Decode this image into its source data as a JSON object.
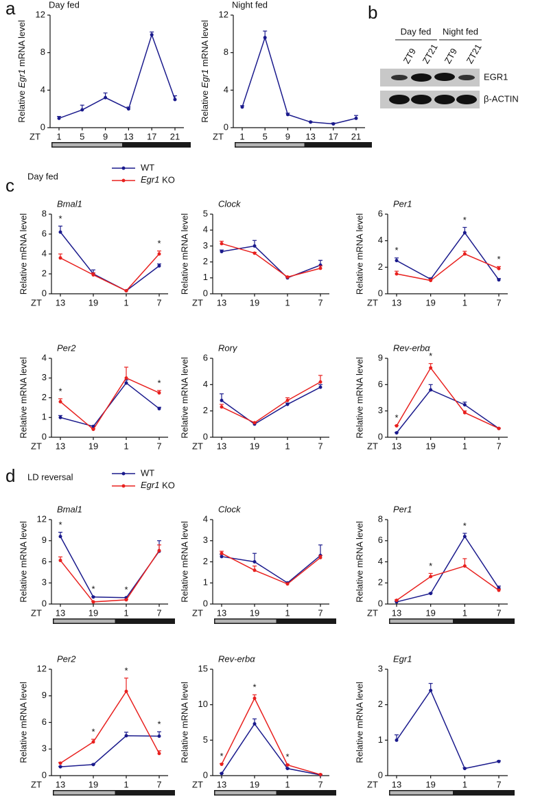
{
  "panels": [
    {
      "label": "a"
    },
    {
      "label": "b"
    },
    {
      "label": "c",
      "subtitle": "Day fed"
    },
    {
      "label": "d",
      "subtitle": "LD reversal"
    }
  ],
  "blot": {
    "groups": [
      "Day fed",
      "Night fed"
    ],
    "lanes": [
      "ZT9",
      "ZT21",
      "ZT9",
      "ZT21"
    ],
    "proteins": [
      "EGR1",
      "β-ACTIN"
    ]
  },
  "chart_data": [
    {
      "type": "line",
      "title": "Day fed",
      "title_italic": false,
      "xlabel": "ZT",
      "ylabel": [
        "Relative ",
        "Egr1",
        " mRNA level"
      ],
      "ylabel_italic": [
        false,
        true,
        false
      ],
      "categories": [
        "1",
        "5",
        "9",
        "13",
        "17",
        "21"
      ],
      "ylim": [
        0,
        12
      ],
      "yticks": [
        0,
        4,
        8,
        12
      ],
      "light_dark_bar": true,
      "series": [
        {
          "name": "WT",
          "color": "#1a1a8c",
          "values": [
            1.0,
            1.9,
            3.2,
            2.0,
            9.9,
            3.0
          ],
          "errors": [
            0.2,
            0.5,
            0.5,
            0.2,
            0.3,
            0.4
          ]
        }
      ]
    },
    {
      "type": "line",
      "title": "Night fed",
      "title_italic": false,
      "xlabel": "ZT",
      "ylabel": [
        "Relative ",
        "Egr1",
        " mRNA level"
      ],
      "ylabel_italic": [
        false,
        true,
        false
      ],
      "categories": [
        "1",
        "5",
        "9",
        "13",
        "17",
        "21"
      ],
      "ylim": [
        0,
        12
      ],
      "yticks": [
        0,
        4,
        8,
        12
      ],
      "light_dark_bar": true,
      "series": [
        {
          "name": "WT",
          "color": "#1a1a8c",
          "values": [
            2.2,
            9.6,
            1.4,
            0.6,
            0.4,
            1.0
          ],
          "errors": [
            0.15,
            0.7,
            0.15,
            0.05,
            0.1,
            0.3
          ]
        }
      ]
    },
    {
      "type": "line",
      "title": "Bmal1",
      "title_italic": true,
      "xlabel": "ZT",
      "ylabel": "Relative mRNA level",
      "categories": [
        "13",
        "19",
        "1",
        "7"
      ],
      "ylim": [
        0,
        8
      ],
      "yticks": [
        0,
        2,
        4,
        6,
        8
      ],
      "legend": true,
      "markers": [
        "*",
        null,
        null,
        "*"
      ],
      "series": [
        {
          "name": "WT",
          "color": "#1a1a8c",
          "values": [
            6.2,
            2.0,
            0.3,
            2.8
          ],
          "errors": [
            0.6,
            0.4,
            0.05,
            0.2
          ]
        },
        {
          "name": "Egr1 KO",
          "italic_first_word": true,
          "color": "#e8201e",
          "values": [
            3.6,
            1.9,
            0.3,
            4.0
          ],
          "errors": [
            0.4,
            0.2,
            0.05,
            0.3
          ]
        }
      ]
    },
    {
      "type": "line",
      "title": "Clock",
      "title_italic": true,
      "xlabel": "ZT",
      "ylabel": "Relative mRNA level",
      "categories": [
        "13",
        "19",
        "1",
        "7"
      ],
      "ylim": [
        0,
        5
      ],
      "yticks": [
        0,
        1,
        2,
        3,
        4,
        5
      ],
      "series": [
        {
          "name": "WT",
          "color": "#1a1a8c",
          "values": [
            2.65,
            3.0,
            1.0,
            1.8
          ],
          "errors": [
            0.1,
            0.35,
            0.05,
            0.3
          ]
        },
        {
          "name": "Egr1 KO",
          "italic_first_word": true,
          "color": "#e8201e",
          "values": [
            3.15,
            2.55,
            1.05,
            1.6
          ],
          "errors": [
            0.15,
            0.05,
            0.05,
            0.15
          ]
        }
      ]
    },
    {
      "type": "line",
      "title": "Per1",
      "title_italic": true,
      "xlabel": "ZT",
      "ylabel": "Relative mRNA level",
      "categories": [
        "13",
        "19",
        "1",
        "7"
      ],
      "ylim": [
        0,
        6
      ],
      "yticks": [
        0,
        2,
        4,
        6
      ],
      "markers": [
        "*",
        null,
        "*",
        "*"
      ],
      "series": [
        {
          "name": "WT",
          "color": "#1a1a8c",
          "values": [
            2.5,
            1.1,
            4.6,
            1.05
          ],
          "errors": [
            0.2,
            0.1,
            0.4,
            0.1
          ]
        },
        {
          "name": "Egr1 KO",
          "italic_first_word": true,
          "color": "#e8201e",
          "values": [
            1.5,
            1.0,
            3.0,
            1.9
          ],
          "errors": [
            0.2,
            0.1,
            0.2,
            0.15
          ]
        }
      ]
    },
    {
      "type": "line",
      "title": "Per2",
      "title_italic": true,
      "xlabel": "ZT",
      "ylabel": "Relative mRNA level",
      "categories": [
        "13",
        "19",
        "1",
        "7"
      ],
      "ylim": [
        0,
        4
      ],
      "yticks": [
        0,
        1,
        2,
        3,
        4
      ],
      "markers": [
        "*",
        null,
        null,
        "*"
      ],
      "series": [
        {
          "name": "WT",
          "color": "#1a1a8c",
          "values": [
            1.0,
            0.55,
            2.75,
            1.45
          ],
          "errors": [
            0.1,
            0.03,
            0.15,
            0.07
          ]
        },
        {
          "name": "Egr1 KO",
          "italic_first_word": true,
          "color": "#e8201e",
          "values": [
            1.8,
            0.4,
            3.0,
            2.25
          ],
          "errors": [
            0.15,
            0.03,
            0.55,
            0.12
          ]
        }
      ]
    },
    {
      "type": "line",
      "title": "Rorγ",
      "title_italic": true,
      "xlabel": "ZT",
      "ylabel": "Relative mRNA level",
      "categories": [
        "13",
        "19",
        "1",
        "7"
      ],
      "ylim": [
        0,
        6
      ],
      "yticks": [
        0,
        2,
        4,
        6
      ],
      "series": [
        {
          "name": "WT",
          "color": "#1a1a8c",
          "values": [
            2.8,
            1.0,
            2.5,
            3.8
          ],
          "errors": [
            0.5,
            0.1,
            0.1,
            0.2
          ]
        },
        {
          "name": "Egr1 KO",
          "italic_first_word": true,
          "color": "#e8201e",
          "values": [
            2.3,
            1.1,
            2.8,
            4.2
          ],
          "errors": [
            0.2,
            0.05,
            0.2,
            0.5
          ]
        }
      ]
    },
    {
      "type": "line",
      "title": "Rev-erbα",
      "title_italic": true,
      "xlabel": "ZT",
      "ylabel": "Relative mRNA level",
      "categories": [
        "13",
        "19",
        "1",
        "7"
      ],
      "ylim": [
        0,
        9
      ],
      "yticks": [
        0,
        3,
        6,
        9
      ],
      "markers": [
        "*",
        "*",
        null,
        null
      ],
      "series": [
        {
          "name": "WT",
          "color": "#1a1a8c",
          "values": [
            0.5,
            5.4,
            3.7,
            1.0
          ],
          "errors": [
            0.05,
            0.6,
            0.3,
            0.05
          ]
        },
        {
          "name": "Egr1 KO",
          "italic_first_word": true,
          "color": "#e8201e",
          "values": [
            1.3,
            7.9,
            2.8,
            1.0
          ],
          "errors": [
            0.05,
            0.5,
            0.2,
            0.05
          ]
        }
      ]
    },
    {
      "type": "line",
      "title": "Bmal1",
      "title_italic": true,
      "xlabel": "ZT",
      "ylabel": "Relative mRNA level",
      "categories": [
        "13",
        "19",
        "1",
        "7"
      ],
      "ylim": [
        0,
        12
      ],
      "yticks": [
        0,
        3,
        6,
        9,
        12
      ],
      "legend": true,
      "light_dark_bar": true,
      "markers": [
        "*",
        "*",
        "*",
        null
      ],
      "series": [
        {
          "name": "WT",
          "color": "#1a1a8c",
          "values": [
            9.6,
            1.0,
            0.9,
            7.5
          ],
          "errors": [
            0.6,
            0.05,
            0.05,
            1.5
          ]
        },
        {
          "name": "Egr1 KO",
          "italic_first_word": true,
          "color": "#e8201e",
          "values": [
            6.2,
            0.3,
            0.6,
            7.6
          ],
          "errors": [
            0.5,
            0.05,
            0.05,
            0.8
          ]
        }
      ]
    },
    {
      "type": "line",
      "title": "Clock",
      "title_italic": true,
      "xlabel": "ZT",
      "ylabel": "Relative mRNA level",
      "categories": [
        "13",
        "19",
        "1",
        "7"
      ],
      "ylim": [
        0,
        4
      ],
      "yticks": [
        0,
        1,
        2,
        3,
        4
      ],
      "light_dark_bar": true,
      "series": [
        {
          "name": "WT",
          "color": "#1a1a8c",
          "values": [
            2.25,
            2.0,
            1.0,
            2.3
          ],
          "errors": [
            0.1,
            0.4,
            0.05,
            0.5
          ]
        },
        {
          "name": "Egr1 KO",
          "italic_first_word": true,
          "color": "#e8201e",
          "values": [
            2.4,
            1.6,
            0.95,
            2.2
          ],
          "errors": [
            0.1,
            0.2,
            0.05,
            0.1
          ]
        }
      ]
    },
    {
      "type": "line",
      "title": "Per1",
      "title_italic": true,
      "xlabel": "ZT",
      "ylabel": "Relative mRNA level",
      "categories": [
        "13",
        "19",
        "1",
        "7"
      ],
      "ylim": [
        0,
        8
      ],
      "yticks": [
        0,
        2,
        4,
        6,
        8
      ],
      "light_dark_bar": true,
      "markers": [
        null,
        "*",
        "*",
        null
      ],
      "series": [
        {
          "name": "WT",
          "color": "#1a1a8c",
          "values": [
            0.2,
            1.0,
            6.4,
            1.5
          ],
          "errors": [
            0.05,
            0.05,
            0.3,
            0.2
          ]
        },
        {
          "name": "Egr1 KO",
          "italic_first_word": true,
          "color": "#e8201e",
          "values": [
            0.35,
            2.6,
            3.6,
            1.3
          ],
          "errors": [
            0.05,
            0.3,
            0.7,
            0.1
          ]
        }
      ]
    },
    {
      "type": "line",
      "title": "Per2",
      "title_italic": true,
      "xlabel": "ZT",
      "ylabel": "Relative mRNA level",
      "categories": [
        "13",
        "19",
        "1",
        "7"
      ],
      "ylim": [
        0,
        12
      ],
      "yticks": [
        0,
        3,
        6,
        9,
        12
      ],
      "light_dark_bar": true,
      "markers": [
        null,
        "*",
        "*",
        "*"
      ],
      "series": [
        {
          "name": "WT",
          "color": "#1a1a8c",
          "values": [
            1.0,
            1.25,
            4.5,
            4.45
          ],
          "errors": [
            0.05,
            0.05,
            0.4,
            0.5
          ]
        },
        {
          "name": "Egr1 KO",
          "italic_first_word": true,
          "color": "#e8201e",
          "values": [
            1.4,
            3.8,
            9.5,
            2.5
          ],
          "errors": [
            0.1,
            0.3,
            1.5,
            0.3
          ]
        }
      ]
    },
    {
      "type": "line",
      "title": "Rev-erbα",
      "title_italic": true,
      "xlabel": "ZT",
      "ylabel": "Relative mRNA level",
      "categories": [
        "13",
        "19",
        "1",
        "7"
      ],
      "ylim": [
        0,
        15
      ],
      "yticks": [
        0,
        5,
        10,
        15
      ],
      "light_dark_bar": true,
      "markers": [
        "*",
        "*",
        "*",
        null
      ],
      "series": [
        {
          "name": "WT",
          "color": "#1a1a8c",
          "values": [
            0.3,
            7.3,
            1.0,
            0.1
          ],
          "errors": [
            0.05,
            0.7,
            0.05,
            0.05
          ]
        },
        {
          "name": "Egr1 KO",
          "italic_first_word": true,
          "color": "#e8201e",
          "values": [
            1.6,
            10.9,
            1.5,
            0.15
          ],
          "errors": [
            0.1,
            0.5,
            0.1,
            0.05
          ]
        }
      ]
    },
    {
      "type": "line",
      "title": "Egr1",
      "title_italic": true,
      "xlabel": "ZT",
      "ylabel": "Relative mRNA level",
      "categories": [
        "13",
        "19",
        "1",
        "7"
      ],
      "ylim": [
        0,
        3
      ],
      "yticks": [
        0,
        1,
        2,
        3
      ],
      "light_dark_bar": true,
      "series": [
        {
          "name": "WT",
          "color": "#1a1a8c",
          "values": [
            1.0,
            2.4,
            0.2,
            0.4
          ],
          "errors": [
            0.15,
            0.2,
            0.02,
            0.02
          ]
        }
      ]
    }
  ]
}
